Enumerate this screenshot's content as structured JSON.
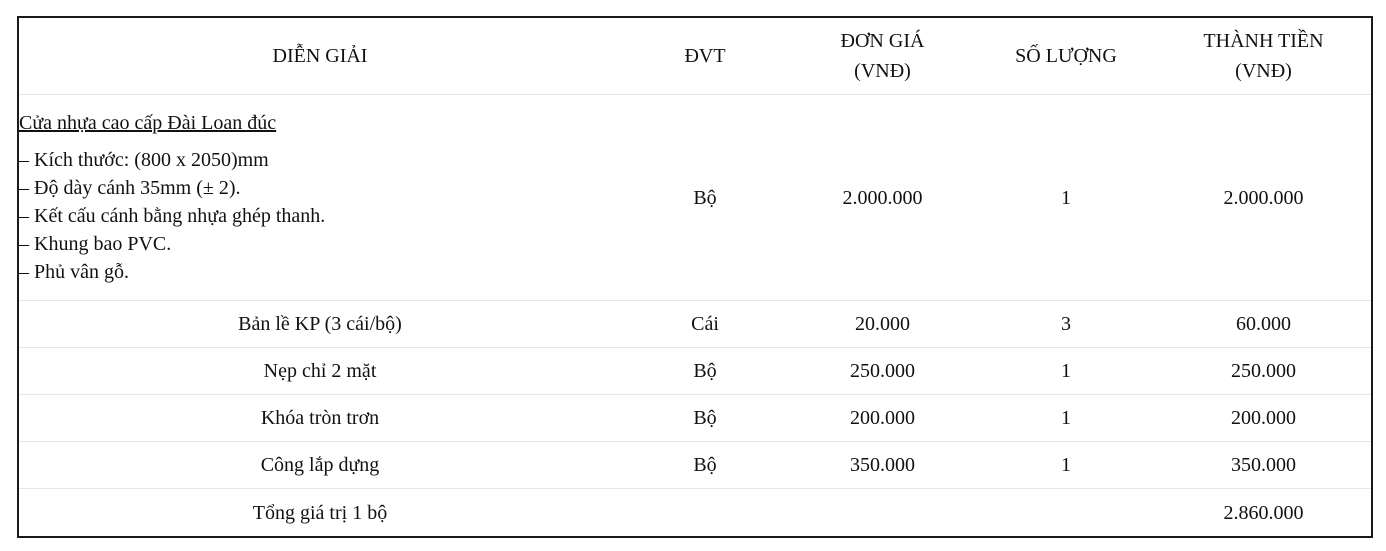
{
  "table": {
    "headers": {
      "description": "DIỄN GIẢI",
      "unit": "ĐVT",
      "unit_price_line1": "ĐƠN GIÁ",
      "unit_price_line2": "(VNĐ)",
      "quantity": "SỐ LƯỢNG",
      "amount_line1": "THÀNH TIỀN",
      "amount_line2": "(VNĐ)"
    },
    "main_item": {
      "title": "Cửa nhựa cao cấp Đài Loan đúc",
      "specs": [
        "– Kích thước: (800 x 2050)mm",
        "– Độ dày cánh 35mm (± 2).",
        "– Kết cấu cánh bằng nhựa ghép thanh.",
        "– Khung bao PVC.",
        "– Phủ vân gỗ."
      ],
      "unit": "Bộ",
      "unit_price": "2.000.000",
      "quantity": "1",
      "amount": "2.000.000"
    },
    "rows": [
      {
        "description": "Bản lề KP (3 cái/bộ)",
        "unit": "Cái",
        "unit_price": "20.000",
        "quantity": "3",
        "amount": "60.000"
      },
      {
        "description": "Nẹp chỉ 2 mặt",
        "unit": "Bộ",
        "unit_price": "250.000",
        "quantity": "1",
        "amount": "250.000"
      },
      {
        "description": "Khóa tròn trơn",
        "unit": "Bộ",
        "unit_price": "200.000",
        "quantity": "1",
        "amount": "200.000"
      },
      {
        "description": "Công lắp dựng",
        "unit": "Bộ",
        "unit_price": "350.000",
        "quantity": "1",
        "amount": "350.000"
      }
    ],
    "total": {
      "label": "Tổng giá trị 1 bộ",
      "amount": "2.860.000"
    }
  }
}
